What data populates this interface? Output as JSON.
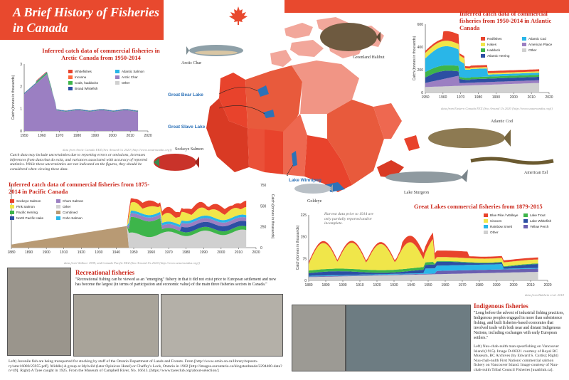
{
  "header": {
    "title_line1": "A Brief History of Fisheries",
    "title_line2": "in Canada"
  },
  "colors": {
    "accent": "#e8492e",
    "title_red": "#cc2a1e",
    "map_red": "#e8432c",
    "lake_blue": "#2d72b8"
  },
  "map": {
    "places": [
      "Great Bear Lake",
      "Great Slave Lake",
      "Lake Winnipeg"
    ],
    "fish": [
      "Arctic Char",
      "Greenland Halibut",
      "Sockeye Salmon",
      "Goldeye",
      "Atlantic Cod",
      "American Eel",
      "Lake Sturgeon"
    ]
  },
  "arctic": {
    "title": "Inferred catch data of commercial fisheries in Arctic Canada from 1950-2014",
    "ylabel": "Catch (tonnes in thousands)",
    "yticks": [
      "0",
      "1",
      "2",
      "3"
    ],
    "xticks": [
      "1950",
      "1960",
      "1970",
      "1980",
      "1990",
      "2000",
      "2010",
      "2020"
    ],
    "legend": [
      {
        "name": "Whitefishes",
        "color": "#e8432c"
      },
      {
        "name": "Atlantic Salmon",
        "color": "#29b6e8"
      },
      {
        "name": "Inconnu",
        "color": "#ff6a3d"
      },
      {
        "name": "Arctic Char",
        "color": "#9b7fc2"
      },
      {
        "name": "Cods, haddocks",
        "color": "#3db54a"
      },
      {
        "name": "Other",
        "color": "#d0d0d0"
      },
      {
        "name": "Broad Whitefish",
        "color": "#2c4fa3"
      }
    ],
    "source": "data from Arctic Canada EEZ (Sea Around Us 2020 [http://www.seaaroundus.org])",
    "note": "Catch data may include uncertainties due to reporting errors or omissions, increases inferences from data that do exist, and variances associated with accuracy of reported statistics. While these uncertainties are not indicated on the figures, they should be considered when viewing these data."
  },
  "atlantic": {
    "title": "Inferred catch data of commercial fisheries from 1950-2014 in Atlantic Canada",
    "ylabel": "Catch (tonnes in thousands)",
    "yticks": [
      "0",
      "200",
      "400",
      "600"
    ],
    "xticks": [
      "1950",
      "1960",
      "1970",
      "1980",
      "1990",
      "2000",
      "2010",
      "2020"
    ],
    "legend": [
      {
        "name": "Redfishes",
        "color": "#e8432c"
      },
      {
        "name": "Atlantic Cod",
        "color": "#29b6e8"
      },
      {
        "name": "Hakes",
        "color": "#f0e64a"
      },
      {
        "name": "American Plaice",
        "color": "#9b7fc2"
      },
      {
        "name": "Haddock",
        "color": "#3db54a"
      },
      {
        "name": "Other",
        "color": "#d0d0d0"
      },
      {
        "name": "Atlantic Herring",
        "color": "#2c4fa3"
      }
    ],
    "source": "data from Eastern Canada EEZ (Sea Around Us 2020 [http://www.seaaroundus.org])"
  },
  "pacific": {
    "title": "Inferred catch data of commercial fisheries from 1875-2014 in Pacific Canada",
    "ylabel": "Catch (tonnes in thousands)",
    "yticks": [
      "0",
      "250",
      "500",
      "750"
    ],
    "xticks": [
      "1880",
      "1890",
      "1900",
      "1910",
      "1920",
      "1930",
      "1940",
      "1950",
      "1960",
      "1970",
      "1980",
      "1990",
      "2000",
      "2010",
      "2020"
    ],
    "legend": [
      {
        "name": "Sockeye Salmon",
        "color": "#e8432c"
      },
      {
        "name": "Chum Salmon",
        "color": "#9b7fc2"
      },
      {
        "name": "Pink Salmon",
        "color": "#f0e64a"
      },
      {
        "name": "Other",
        "color": "#d0d0d0"
      },
      {
        "name": "Pacific Herring",
        "color": "#3db54a"
      },
      {
        "name": "Combined",
        "color": "#b89a74"
      },
      {
        "name": "North Pacific Hake",
        "color": "#2c4fa3"
      },
      {
        "name": "Coho Salmon",
        "color": "#29b6e8"
      }
    ],
    "source": "data from Wallace 1998, and Canada Pacific EEZ (Sea Around Us 2020 [http://www.seaaroundus.org])"
  },
  "greatlakes": {
    "title": "Great Lakes commercial fisheries from 1879-2015",
    "ylabel": "Catch (tonnes in thousands)",
    "yticks": [
      "0",
      "75",
      "150",
      "225"
    ],
    "xticks": [
      "1880",
      "1890",
      "1900",
      "1910",
      "1920",
      "1930",
      "1940",
      "1950",
      "1960",
      "1970",
      "1980",
      "1990",
      "2000",
      "2010",
      "2020"
    ],
    "note": "Harvest data prior to 1914 are only partially reported and/or incomplete.",
    "legend": [
      {
        "name": "Blue Pike / Walleye",
        "color": "#e8432c"
      },
      {
        "name": "Lake Trout",
        "color": "#3db54a"
      },
      {
        "name": "Ciscoes",
        "color": "#f0e64a"
      },
      {
        "name": "Lake Whitefish",
        "color": "#2c4fa3"
      },
      {
        "name": "Rainbow Smelt",
        "color": "#29b6e8"
      },
      {
        "name": "Yellow Perch",
        "color": "#6a5fb0"
      },
      {
        "name": "Other",
        "color": "#d0d0d0"
      }
    ],
    "source": "data from Baldwin et al. 2018"
  },
  "recreational": {
    "title": "Recreational fisheries",
    "text": "\"Recreational fishing can be viewed as an \"emerging\" fishery in that it did not exist prior to European settlement and now has become the largest (in terms of participation and economic value) of the main three fisheries sectors in Canada.\"",
    "caption": "Left) Juvenile fish are being transported for stocking by staff of the Ontario Department of Lands and Forests. From [http://www.omlo.on.ca/library/toposto-ry/amc16080/25955.pdf]. Middle) A group at Idylwild (later Opinicon Hotel) or Chaffey's Lock, Ontario in 1902 [http://images.ourontario.ca/kingstonbeade/2294480-data?n=49]. Right) A Tyee caught in 1925. From the Museum of Campbell River, No. 16613. [https://www.tyeeclub.org/about-selection/]"
  },
  "indigenous": {
    "title": "Indigenous fisheries",
    "text": "\"Long before the advent of industrial fishing practices, Indigenous peoples engaged in more than subsistence fishing, and built fisheries-based economies that involved trade with both near and distant Indigenous Nations, including exchanges with early European settlers.\"",
    "caption": "Left) Nuu-chah-nulth man spearfishing on Vancouver Island (1915). Image D-08321 courtesy of Royal BC Museum, BC Archives (by Edward S. Curtis); Right) Nuu-chah-nulth First Nations' commercial salmon fishery on Vancouver Island. Image courtesy of Nuu-chah-nulth Tribal Council Fisheries [uuathluk.ca]."
  }
}
